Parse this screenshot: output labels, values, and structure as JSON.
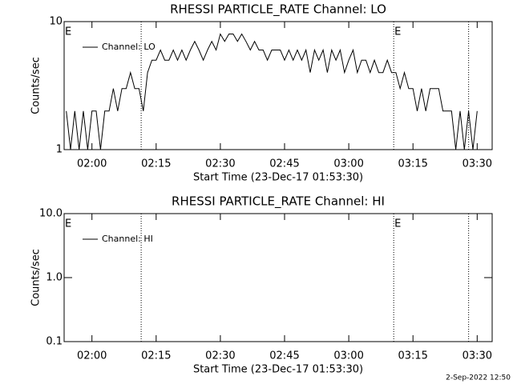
{
  "chart_data": [
    {
      "type": "line",
      "title": "RHESSI PARTICLE_RATE Channel: LO",
      "x_label": "Start Time (23-Dec-17 01:53:30)",
      "y_label": "Counts/sec",
      "log_y": true,
      "xlim": [
        113.5,
        213.5
      ],
      "xticks": [
        {
          "value": 120,
          "label": "02:00"
        },
        {
          "value": 135,
          "label": "02:15"
        },
        {
          "value": 150,
          "label": "02:30"
        },
        {
          "value": 165,
          "label": "02:45"
        },
        {
          "value": 180,
          "label": "03:00"
        },
        {
          "value": 195,
          "label": "03:15"
        },
        {
          "value": 210,
          "label": "03:30"
        }
      ],
      "ylim": [
        1,
        10
      ],
      "yticks": [
        1,
        10
      ],
      "vlines": [
        131.5,
        190.5,
        208
      ],
      "annotations": [
        {
          "text": "E",
          "x": 113.5
        },
        {
          "text": "E",
          "x": 190.5
        }
      ],
      "x": [
        114,
        115,
        116,
        117,
        118,
        119,
        120,
        121,
        122,
        123,
        124,
        125,
        126,
        127,
        128,
        129,
        130,
        131,
        132,
        133,
        134,
        135,
        136,
        137,
        138,
        139,
        140,
        141,
        142,
        143,
        144,
        145,
        146,
        147,
        148,
        149,
        150,
        151,
        152,
        153,
        154,
        155,
        156,
        157,
        158,
        159,
        160,
        161,
        162,
        163,
        164,
        165,
        166,
        167,
        168,
        169,
        170,
        171,
        172,
        173,
        174,
        175,
        176,
        177,
        178,
        179,
        180,
        181,
        182,
        183,
        184,
        185,
        186,
        187,
        188,
        189,
        190,
        191,
        192,
        193,
        194,
        195,
        196,
        197,
        198,
        199,
        200,
        201,
        202,
        203,
        204,
        205,
        206,
        207,
        208,
        209,
        210
      ],
      "series": [
        {
          "name": "Channel: LO",
          "color": "#000000",
          "values": [
            2,
            1,
            2,
            1,
            2,
            1,
            2,
            2,
            1,
            2,
            2,
            3,
            2,
            3,
            3,
            4,
            3,
            3,
            2,
            4,
            5,
            5,
            6,
            5,
            5,
            6,
            5,
            6,
            5,
            6,
            7,
            6,
            5,
            6,
            7,
            6,
            8,
            7,
            8,
            8,
            7,
            8,
            7,
            6,
            7,
            6,
            6,
            5,
            6,
            6,
            6,
            5,
            6,
            5,
            6,
            5,
            6,
            4,
            6,
            5,
            6,
            4,
            6,
            5,
            6,
            4,
            5,
            6,
            4,
            5,
            5,
            4,
            5,
            4,
            4,
            5,
            4,
            4,
            3,
            4,
            3,
            3,
            2,
            3,
            2,
            3,
            3,
            3,
            2,
            2,
            2,
            1,
            2,
            1,
            2,
            1,
            2
          ]
        }
      ]
    },
    {
      "type": "line",
      "title": "RHESSI PARTICLE_RATE Channel: HI",
      "x_label": "Start Time (23-Dec-17 01:53:30)",
      "y_label": "Counts/sec",
      "log_y": true,
      "xlim": [
        113.5,
        213.5
      ],
      "xticks": [
        {
          "value": 120,
          "label": "02:00"
        },
        {
          "value": 135,
          "label": "02:15"
        },
        {
          "value": 150,
          "label": "02:30"
        },
        {
          "value": 165,
          "label": "02:45"
        },
        {
          "value": 180,
          "label": "03:00"
        },
        {
          "value": 195,
          "label": "03:15"
        },
        {
          "value": 210,
          "label": "03:30"
        }
      ],
      "ylim": [
        0.1,
        10
      ],
      "yticks": [
        {
          "value": 0.1,
          "label": "0.1"
        },
        {
          "value": 1,
          "label": "1.0"
        },
        {
          "value": 10,
          "label": "10.0"
        }
      ],
      "vlines": [
        131.5,
        190.5,
        208
      ],
      "annotations": [
        {
          "text": "E",
          "x": 113.5
        },
        {
          "text": "E",
          "x": 190.5
        }
      ],
      "x": [],
      "series": [
        {
          "name": "Channel: HI",
          "color": "#000000",
          "values": []
        }
      ]
    }
  ],
  "footer": "2-Sep-2022 12:50"
}
